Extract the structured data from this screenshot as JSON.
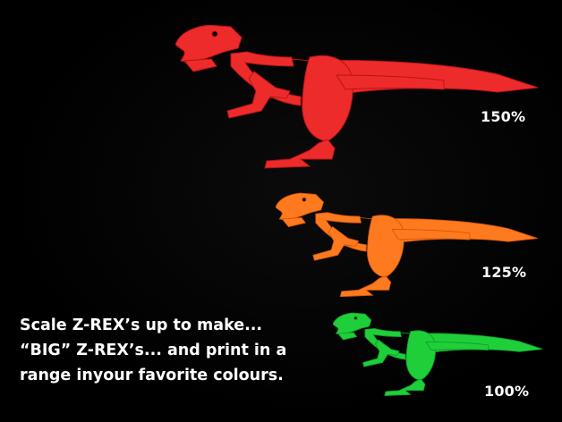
{
  "figures": [
    {
      "name": "red-rex",
      "scale_label": "150%",
      "color": "#ee2b2b",
      "shade": "#c41818"
    },
    {
      "name": "orange-rex",
      "scale_label": "125%",
      "color": "#ff7a1f",
      "shade": "#d95d0c"
    },
    {
      "name": "green-rex",
      "scale_label": "100%",
      "color": "#1fcf3a",
      "shade": "#14a82a"
    }
  ],
  "caption": {
    "line1": "Scale Z-REX’s up to make...",
    "line2": "“BIG” Z-REX’s... and print in a",
    "line3": "range inyour favorite colours."
  }
}
